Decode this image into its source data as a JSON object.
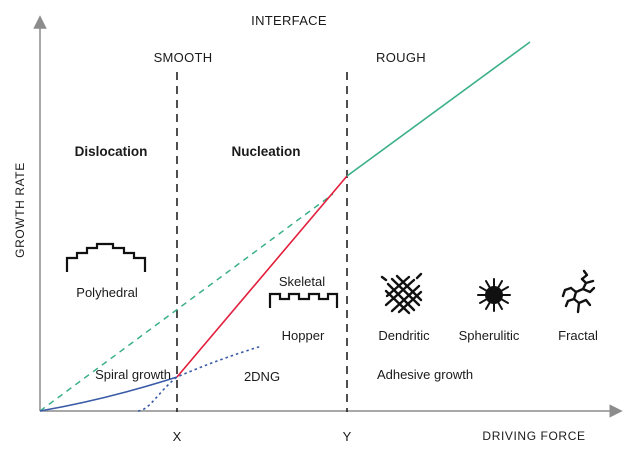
{
  "diagram": {
    "header": "INTERFACE",
    "regions": {
      "smooth": "SMOOTH",
      "rough": "ROUGH"
    },
    "axes": {
      "y_label": "GROWTH RATE",
      "x_label": "DRIVING FORCE",
      "x_ticks": [
        "X",
        "Y"
      ]
    },
    "mechanisms": {
      "dislocation": "Dislocation",
      "nucleation": "Nucleation"
    },
    "curves": {
      "spiral": "Spiral growth",
      "dng": "2DNG",
      "adhesive": "Adhesive growth"
    },
    "morphologies": {
      "polyhedral": "Polyhedral",
      "skeletal": "Skeletal",
      "hopper": "Hopper",
      "dendritic": "Dendritic",
      "spherulitic": "Spherulitic",
      "fractal": "Fractal"
    },
    "colors": {
      "axis": "#8c8c8c",
      "text": "#1a1a1a",
      "spiral_curve": "#3a5ba8",
      "nucleation_line": "#e31e3c",
      "adhesive_line": "#3cb08a",
      "extrapolation": "#3cb08a",
      "dng_curve": "#3a5ba8"
    },
    "icons": [
      "polyhedral-crystal-icon",
      "hopper-crystal-icon",
      "dendritic-crystal-icon",
      "spherulitic-crystal-icon",
      "fractal-crystal-icon"
    ]
  }
}
